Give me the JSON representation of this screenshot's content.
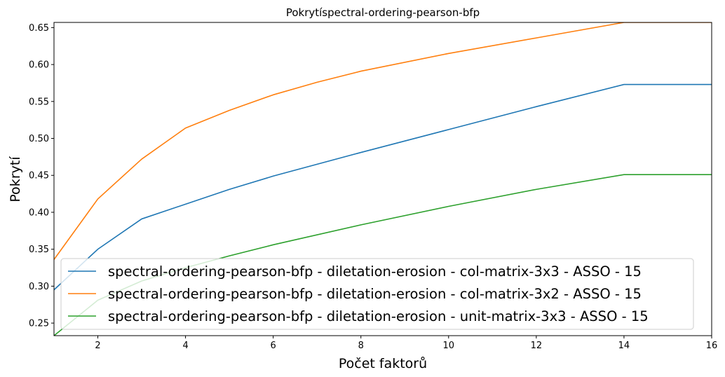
{
  "chart_data": {
    "type": "line",
    "title": "Pokrytíspectral-ordering-pearson-bfp",
    "xlabel": "Počet faktorů",
    "ylabel": "Pokrytí",
    "xlim": [
      1,
      16
    ],
    "ylim": [
      0.233,
      0.657
    ],
    "xticks": [
      2,
      4,
      6,
      8,
      10,
      12,
      14,
      16
    ],
    "yticks": [
      0.25,
      0.3,
      0.35,
      0.4,
      0.45,
      0.5,
      0.55,
      0.6,
      0.65
    ],
    "xtick_labels": [
      "2",
      "4",
      "6",
      "8",
      "10",
      "12",
      "14",
      "16"
    ],
    "ytick_labels": [
      "0.25",
      "0.30",
      "0.35",
      "0.40",
      "0.45",
      "0.50",
      "0.55",
      "0.60",
      "0.65"
    ],
    "grid": false,
    "legend_position": "lower-left",
    "series": [
      {
        "name": "spectral-ordering-pearson-bfp - diletation-erosion - col-matrix-3x3 - ASSO - 15",
        "color": "#1f77b4",
        "x": [
          1,
          2,
          3,
          4,
          5,
          6,
          8,
          10,
          12,
          14,
          16
        ],
        "y": [
          0.295,
          0.35,
          0.391,
          0.411,
          0.431,
          0.449,
          0.481,
          0.512,
          0.543,
          0.573,
          0.573
        ]
      },
      {
        "name": "spectral-ordering-pearson-bfp - diletation-erosion - col-matrix-3x2 - ASSO - 15",
        "color": "#ff7f0e",
        "x": [
          1,
          2,
          3,
          4,
          5,
          6,
          7,
          8,
          10,
          12,
          14,
          16
        ],
        "y": [
          0.336,
          0.418,
          0.472,
          0.514,
          0.538,
          0.559,
          0.576,
          0.591,
          0.615,
          0.636,
          0.657,
          0.657
        ]
      },
      {
        "name": "spectral-ordering-pearson-bfp - diletation-erosion - unit-matrix-3x3 - ASSO - 15",
        "color": "#2ca02c",
        "x": [
          1,
          2,
          3,
          4,
          5,
          6,
          8,
          10,
          12,
          14,
          16
        ],
        "y": [
          0.233,
          0.281,
          0.307,
          0.325,
          0.341,
          0.356,
          0.383,
          0.408,
          0.431,
          0.451,
          0.451
        ]
      }
    ]
  }
}
